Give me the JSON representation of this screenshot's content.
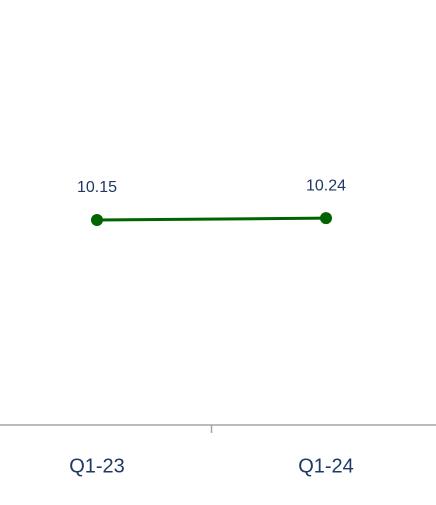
{
  "chart_data": {
    "type": "line",
    "categories": [
      "Q1-23",
      "Q1-24"
    ],
    "series": [
      {
        "name": null,
        "color": "#006400",
        "values": [
          10.15,
          10.24
        ]
      }
    ],
    "ylim": [
      0,
      20
    ]
  }
}
